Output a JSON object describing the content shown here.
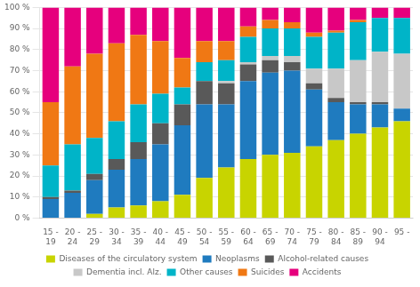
{
  "chart_data": {
    "type": "bar",
    "stacked": true,
    "grid": true,
    "legend": "bottom",
    "categories": [
      [
        "15 -",
        "19"
      ],
      [
        "20 -",
        "24"
      ],
      [
        "25 -",
        "29"
      ],
      [
        "30 -",
        "34"
      ],
      [
        "35 -",
        "39"
      ],
      [
        "40 -",
        "44"
      ],
      [
        "45 -",
        "49"
      ],
      [
        "50 -",
        "54"
      ],
      [
        "55 -",
        "59"
      ],
      [
        "60 -",
        "64"
      ],
      [
        "65 -",
        "69"
      ],
      [
        "70 -",
        "74"
      ],
      [
        "75 -",
        "79"
      ],
      [
        "80 -",
        "84"
      ],
      [
        "85 -",
        "89"
      ],
      [
        "90 -",
        "94"
      ],
      [
        "95 -"
      ]
    ],
    "series": [
      {
        "name": "Diseases of the circulatory system",
        "color": "#c8d400",
        "values": [
          0,
          0,
          2,
          5,
          6,
          8,
          11,
          19,
          24,
          28,
          30,
          31,
          34,
          37,
          40,
          43,
          46
        ]
      },
      {
        "name": "Neoplasms",
        "color": "#1f7bbf",
        "values": [
          9,
          12,
          16,
          18,
          22,
          27,
          33,
          35,
          30,
          37,
          39,
          39,
          27,
          18,
          14,
          11,
          6
        ]
      },
      {
        "name": "Alcohol-related causes",
        "color": "#595959",
        "values": [
          1,
          1,
          3,
          5,
          8,
          10,
          10,
          11,
          10,
          8,
          6,
          4,
          3,
          2,
          1,
          1,
          0
        ]
      },
      {
        "name": "Dementia incl. Alz.",
        "color": "#c8c8c8",
        "values": [
          0,
          0,
          0,
          0,
          0,
          0,
          0,
          0,
          1,
          1,
          2,
          3,
          7,
          14,
          20,
          24,
          26
        ]
      },
      {
        "name": "Other causes",
        "color": "#00b4c8",
        "values": [
          15,
          22,
          17,
          18,
          18,
          14,
          8,
          9,
          10,
          12,
          13,
          13,
          15,
          17,
          18,
          16,
          17
        ]
      },
      {
        "name": "Suicides",
        "color": "#f07814",
        "values": [
          30,
          37,
          40,
          37,
          33,
          25,
          14,
          10,
          9,
          5,
          4,
          3,
          2,
          1,
          1,
          0,
          0
        ]
      },
      {
        "name": "Accidents",
        "color": "#e6007d",
        "values": [
          45,
          28,
          22,
          17,
          13,
          16,
          24,
          16,
          16,
          9,
          6,
          7,
          12,
          11,
          6,
          5,
          5
        ]
      }
    ],
    "ylim": [
      0,
      100
    ],
    "yticks": [
      {
        "value": 0,
        "label": "0 %"
      },
      {
        "value": 10,
        "label": "10 %"
      },
      {
        "value": 20,
        "label": "20 %"
      },
      {
        "value": 30,
        "label": "30 %"
      },
      {
        "value": 40,
        "label": "40 %"
      },
      {
        "value": 50,
        "label": "50 %"
      },
      {
        "value": 60,
        "label": "60 %"
      },
      {
        "value": 70,
        "label": "70 %"
      },
      {
        "value": 80,
        "label": "80 %"
      },
      {
        "value": 90,
        "label": "90 %"
      },
      {
        "value": 100,
        "label": "100 %"
      }
    ]
  }
}
